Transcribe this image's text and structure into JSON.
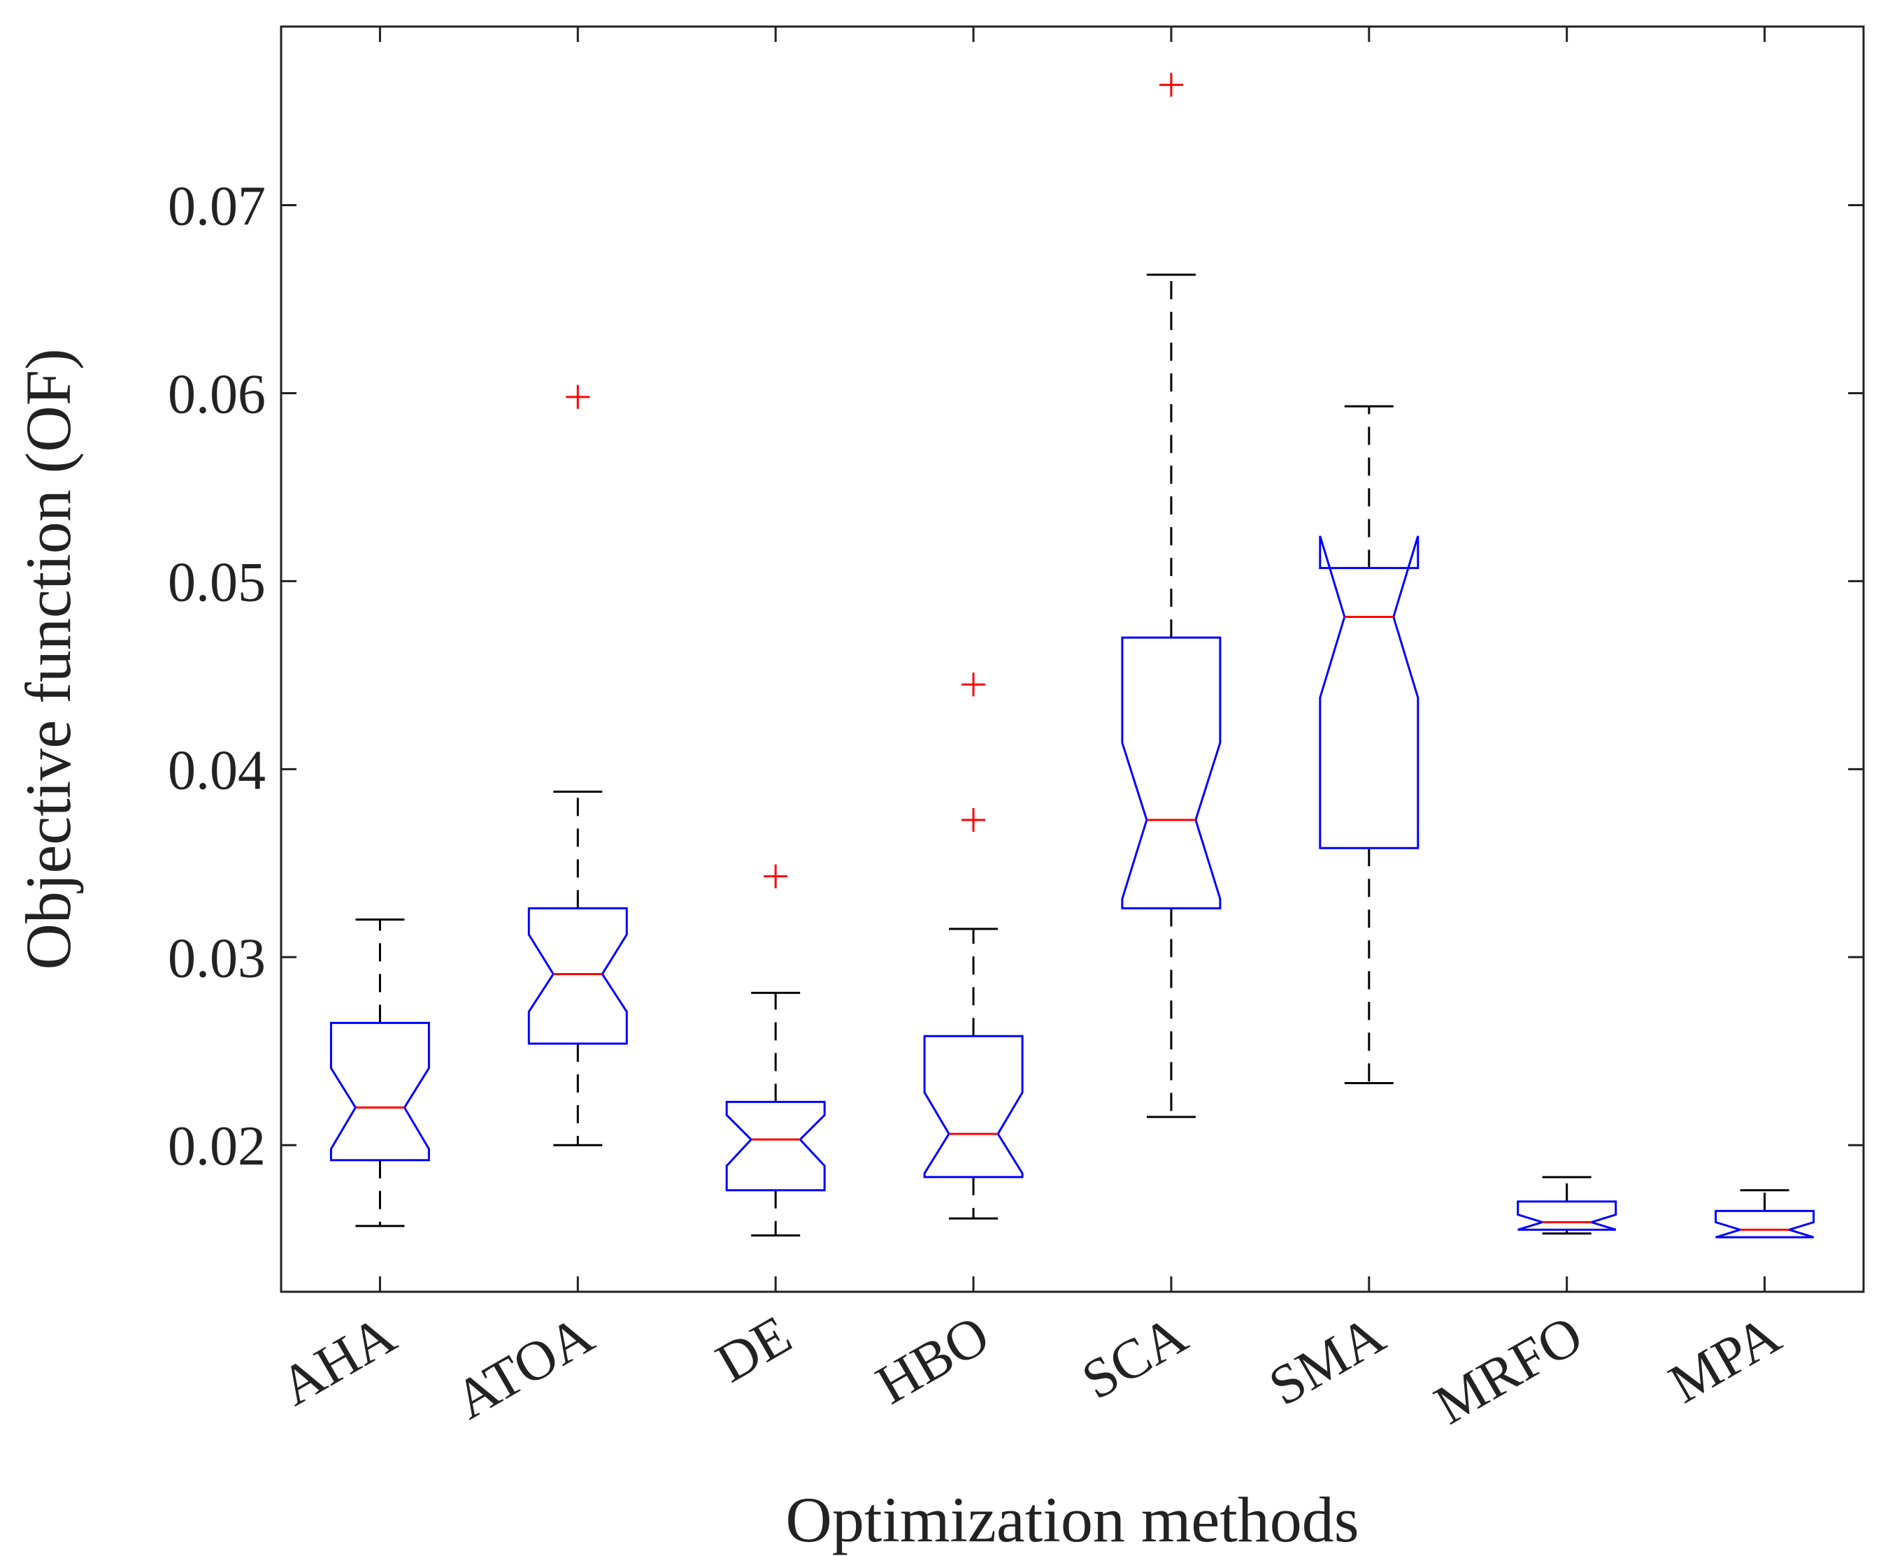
{
  "chart_data": {
    "type": "boxplot",
    "title": "",
    "xlabel": "Optimization methods",
    "ylabel": "Objective function (OF)",
    "ylim": [
      0.0122,
      0.0795
    ],
    "yticks": [
      0.02,
      0.03,
      0.04,
      0.05,
      0.06,
      0.07
    ],
    "ytick_labels": [
      "0.02",
      "0.03",
      "0.04",
      "0.05",
      "0.06",
      "0.07"
    ],
    "grid": false,
    "notched": true,
    "colors": {
      "box": "#0000ff",
      "median": "#ff0000",
      "whisker": "#000000",
      "outlier": "#ff0000",
      "axes": "#222222"
    },
    "categories": [
      "AHA",
      "ATOA",
      "DE",
      "HBO",
      "SCA",
      "SMA",
      "MRFO",
      "MPA"
    ],
    "boxes": [
      {
        "name": "AHA",
        "whisker_low": 0.0157,
        "q1": 0.0192,
        "median": 0.022,
        "q3": 0.0265,
        "whisker_high": 0.032,
        "notch_low": 0.0198,
        "notch_high": 0.0241,
        "outliers": []
      },
      {
        "name": "ATOA",
        "whisker_low": 0.02,
        "q1": 0.0254,
        "median": 0.0291,
        "q3": 0.0326,
        "whisker_high": 0.0388,
        "notch_low": 0.0271,
        "notch_high": 0.0312,
        "outliers": [
          0.0598
        ]
      },
      {
        "name": "DE",
        "whisker_low": 0.0152,
        "q1": 0.0176,
        "median": 0.0203,
        "q3": 0.0223,
        "whisker_high": 0.0281,
        "notch_low": 0.0189,
        "notch_high": 0.0216,
        "outliers": [
          0.0343
        ]
      },
      {
        "name": "HBO",
        "whisker_low": 0.0161,
        "q1": 0.0183,
        "median": 0.0206,
        "q3": 0.0258,
        "whisker_high": 0.0315,
        "notch_low": 0.0185,
        "notch_high": 0.0228,
        "outliers": [
          0.0445,
          0.0373
        ]
      },
      {
        "name": "SCA",
        "whisker_low": 0.0215,
        "q1": 0.0326,
        "median": 0.0373,
        "q3": 0.047,
        "whisker_high": 0.0663,
        "notch_low": 0.0331,
        "notch_high": 0.0414,
        "outliers": [
          0.0764
        ]
      },
      {
        "name": "SMA",
        "whisker_low": 0.0233,
        "q1": 0.0358,
        "median": 0.0481,
        "q3": 0.0507,
        "whisker_high": 0.0593,
        "notch_low": 0.0438,
        "notch_high": 0.0524,
        "outliers": []
      },
      {
        "name": "MRFO",
        "whisker_low": 0.0153,
        "q1": 0.0155,
        "median": 0.0159,
        "q3": 0.017,
        "whisker_high": 0.0183,
        "notch_low": 0.0155,
        "notch_high": 0.0163,
        "outliers": []
      },
      {
        "name": "MPA",
        "whisker_low": 0.0151,
        "q1": 0.0151,
        "median": 0.0155,
        "q3": 0.0165,
        "whisker_high": 0.0176,
        "notch_low": 0.0151,
        "notch_high": 0.0159,
        "outliers": []
      }
    ]
  }
}
